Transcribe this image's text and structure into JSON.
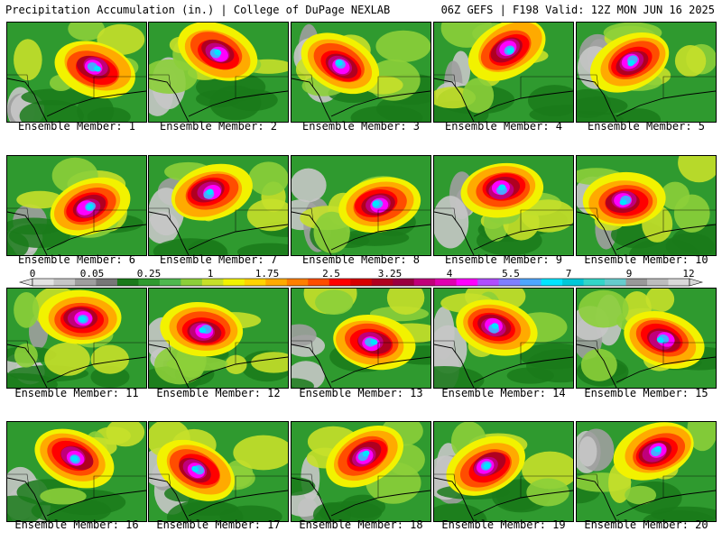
{
  "header": {
    "left": "Precipitation Accumulation (in.) | College of DuPage NEXLAB",
    "right": "06Z GEFS | F198 Valid: 12Z MON JUN 16 2025"
  },
  "members": [
    "Ensemble Member: 1",
    "Ensemble Member: 2",
    "Ensemble Member: 3",
    "Ensemble Member: 4",
    "Ensemble Member: 5",
    "Ensemble Member: 6",
    "Ensemble Member: 7",
    "Ensemble Member: 8",
    "Ensemble Member: 9",
    "Ensemble Member: 10",
    "Ensemble Member: 11",
    "Ensemble Member: 12",
    "Ensemble Member: 13",
    "Ensemble Member: 14",
    "Ensemble Member: 15",
    "Ensemble Member: 16",
    "Ensemble Member: 17",
    "Ensemble Member: 18",
    "Ensemble Member: 19",
    "Ensemble Member: 20"
  ],
  "colorbar": {
    "ticks": [
      "0",
      "0.05",
      "0.25",
      "1",
      "1.75",
      "2.5",
      "3.25",
      "4",
      "5.5",
      "7",
      "9",
      "12"
    ],
    "colors": [
      "#e3e3e3",
      "#c6c6c6",
      "#9e9e9e",
      "#777777",
      "#1a7a1a",
      "#2f9a2f",
      "#4fb84f",
      "#8ccf3a",
      "#c6e02a",
      "#f2f200",
      "#ffd400",
      "#ffaa00",
      "#ff7f00",
      "#ff4d00",
      "#ff0000",
      "#d80000",
      "#b00020",
      "#9a0040",
      "#c0007a",
      "#e000b0",
      "#ff00ff",
      "#b04dff",
      "#7f7fff",
      "#4da6ff",
      "#00e5ff",
      "#00c8d8",
      "#33d6c8",
      "#66cccc",
      "#999999",
      "#bdbdbd",
      "#d9d9d9"
    ]
  }
}
